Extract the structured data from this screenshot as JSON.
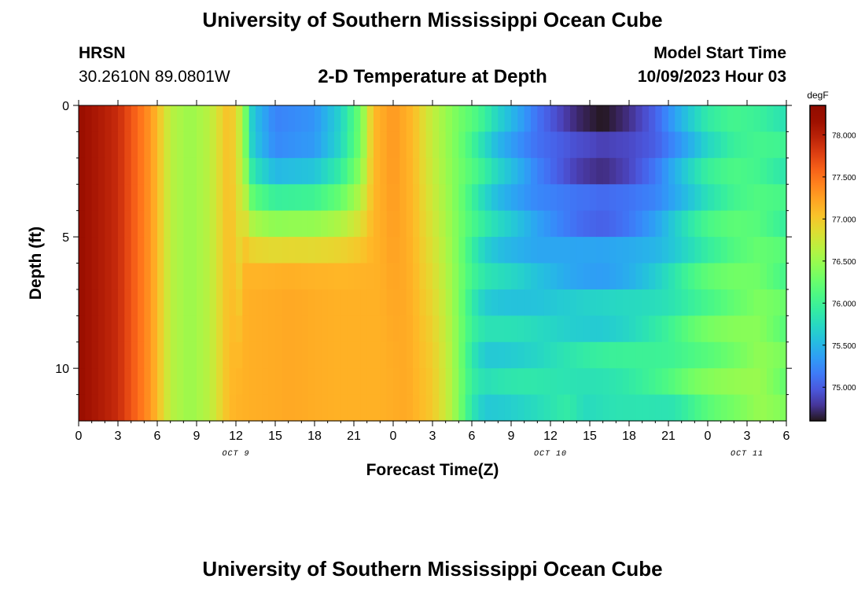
{
  "header": {
    "title": "University of Southern Mississippi Ocean Cube",
    "station": "HRSN",
    "coordinates": "30.2610N  89.0801W",
    "model_start_label": "Model Start Time",
    "model_start_value": "10/09/2023 Hour 03",
    "footer_title": "University of Southern Mississippi Ocean Cube"
  },
  "chart_data": {
    "type": "heatmap",
    "title": "2-D Temperature at Depth",
    "xlabel": "Forecast Time(Z)",
    "ylabel": "Depth (ft)",
    "x_tick_labels": [
      "0",
      "3",
      "6",
      "9",
      "12",
      "15",
      "18",
      "21",
      "0",
      "3",
      "6",
      "9",
      "12",
      "15",
      "18",
      "21",
      "0",
      "3",
      "6"
    ],
    "x_range_hours": [
      0,
      54
    ],
    "date_labels": [
      {
        "text": "OCT 9",
        "hour": 12
      },
      {
        "text": "OCT 10",
        "hour": 36
      },
      {
        "text": "OCT 11",
        "hour": 51
      }
    ],
    "y_tick_labels": [
      "0",
      "5",
      "10"
    ],
    "y_tick_values": [
      0,
      5,
      10
    ],
    "depth_range_ft": [
      0,
      12
    ],
    "depth_levels_ft": [
      0.5,
      1.5,
      2.5,
      3.5,
      4.5,
      5.5,
      6.5,
      7.5,
      8.5,
      9.5,
      10.5,
      11.5
    ],
    "time_step_hours": 0.5,
    "colorbar": {
      "unit": "degF",
      "range": [
        74.6,
        78.35
      ],
      "tick_values": [
        75.0,
        75.5,
        76.0,
        76.5,
        77.0,
        77.5,
        78.0
      ],
      "tick_labels": [
        "75.000",
        "75.500",
        "76.000",
        "76.500",
        "77.000",
        "77.500",
        "78.000"
      ],
      "colormap": "turbo"
    }
  }
}
